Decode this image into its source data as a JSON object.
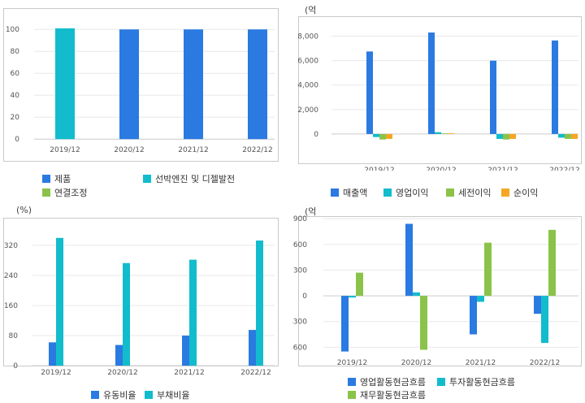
{
  "charts": {
    "product": {
      "unit": "",
      "legend": [
        {
          "label": "제품",
          "color": "#2a7ae2"
        },
        {
          "label": "선박엔진 및 디젤발전",
          "color": "#12bccc"
        },
        {
          "label": "연결조정",
          "color": "#8bc34a"
        }
      ]
    },
    "income": {
      "unit": "(억원)",
      "legend": [
        {
          "label": "매출액",
          "color": "#2a7ae2"
        },
        {
          "label": "영업이익",
          "color": "#12bccc"
        },
        {
          "label": "세전이익",
          "color": "#8bc34a"
        },
        {
          "label": "순이익",
          "color": "#f5a623"
        }
      ]
    },
    "ratio": {
      "unit": "(%)",
      "legend": [
        {
          "label": "유동비율",
          "color": "#2a7ae2"
        },
        {
          "label": "부채비율",
          "color": "#12bccc"
        }
      ]
    },
    "cashflow": {
      "unit": "(억원)",
      "legend": [
        {
          "label": "영업활동현금흐름",
          "color": "#2a7ae2"
        },
        {
          "label": "투자활동현금흐름",
          "color": "#12bccc"
        },
        {
          "label": "재무활동현금흐름",
          "color": "#8bc34a"
        }
      ]
    }
  },
  "chart_data": [
    {
      "id": "product",
      "type": "bar",
      "stacked": true,
      "categories": [
        "2019/12",
        "2020/12",
        "2021/12",
        "2022/12"
      ],
      "yticks": [
        0,
        20,
        40,
        60,
        80,
        100
      ],
      "ylim": [
        -8,
        112
      ],
      "grid": true,
      "series": [
        {
          "name": "제품",
          "values": [
            0,
            100,
            100,
            100
          ]
        },
        {
          "name": "선박엔진 및 디젤발전",
          "values": [
            101,
            0,
            0,
            0
          ]
        },
        {
          "name": "연결조정",
          "values": [
            0,
            0,
            0,
            0
          ]
        }
      ]
    },
    {
      "id": "income",
      "type": "bar",
      "categories": [
        "2019/12",
        "2020/12",
        "2021/12",
        "2022/12"
      ],
      "yticks": [
        0,
        2000,
        4000,
        6000,
        8000
      ],
      "yticklabels": [
        "0",
        "2,000",
        "4,000",
        "6,000",
        "8,000"
      ],
      "ylim": [
        -1400,
        9100
      ],
      "grid": true,
      "series": [
        {
          "name": "매출액",
          "values": [
            6750,
            8300,
            6000,
            7650
          ]
        },
        {
          "name": "영업이익",
          "values": [
            -250,
            150,
            -400,
            -300
          ]
        },
        {
          "name": "세전이익",
          "values": [
            -450,
            50,
            -450,
            -400
          ]
        },
        {
          "name": "순이익",
          "values": [
            -400,
            50,
            -400,
            -400
          ]
        }
      ]
    },
    {
      "id": "ratio",
      "type": "bar",
      "categories": [
        "2019/12",
        "2020/12",
        "2021/12",
        "2022/12"
      ],
      "yticks": [
        0,
        80,
        160,
        240,
        320
      ],
      "ylim": [
        0,
        385
      ],
      "grid": true,
      "series": [
        {
          "name": "유동비율",
          "values": [
            62,
            55,
            80,
            95
          ]
        },
        {
          "name": "부채비율",
          "values": [
            340,
            273,
            282,
            333
          ]
        }
      ]
    },
    {
      "id": "cashflow",
      "type": "bar",
      "categories": [
        "2019/12",
        "2020/12",
        "2021/12",
        "2022/12"
      ],
      "yticks": [
        -600,
        -300,
        0,
        300,
        600,
        900
      ],
      "ylim": [
        -720,
        930
      ],
      "grid": true,
      "series": [
        {
          "name": "영업활동현금흐름",
          "values": [
            -650,
            840,
            -450,
            -210
          ]
        },
        {
          "name": "투자활동현금흐름",
          "values": [
            -20,
            40,
            -70,
            -550
          ]
        },
        {
          "name": "재무활동현금흐름",
          "values": [
            270,
            -630,
            620,
            770
          ]
        }
      ]
    }
  ]
}
